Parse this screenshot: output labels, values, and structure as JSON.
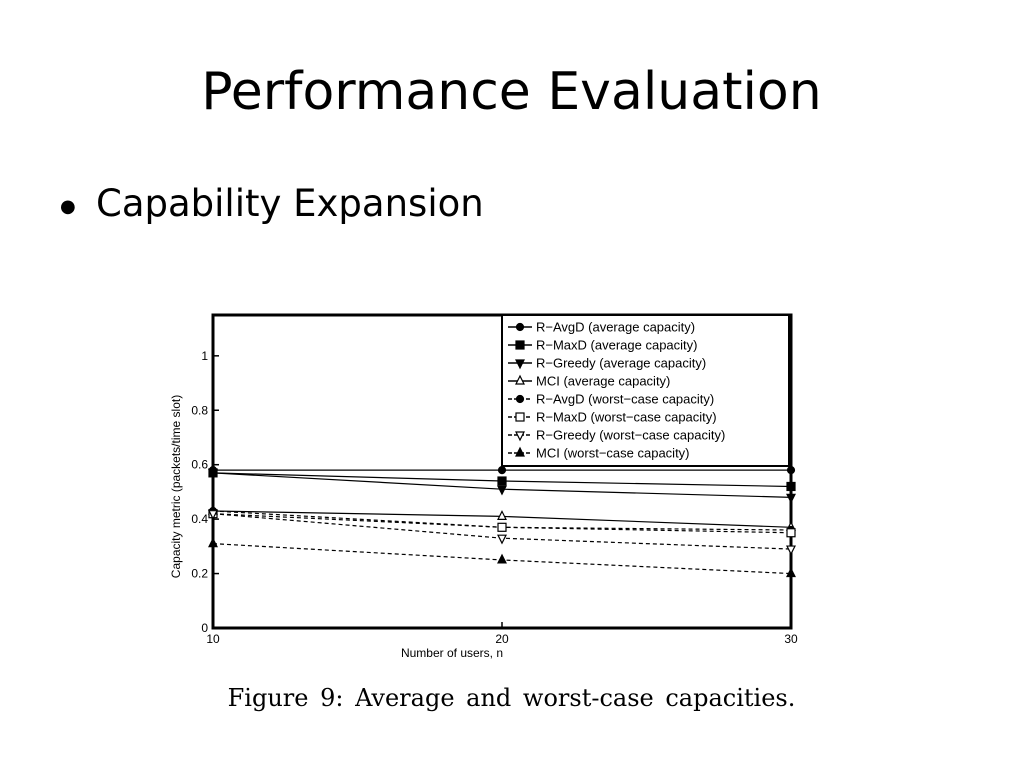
{
  "slide": {
    "title": "Performance Evaluation",
    "bullet": "Capability Expansion",
    "caption": "Figure 9:  Average and worst-case capacities."
  },
  "chart_data": {
    "type": "line",
    "title": "",
    "xlabel": "Number of users, n",
    "ylabel": "Capacity metric (packets/time slot)",
    "x": [
      10,
      20,
      30
    ],
    "xlim": [
      10,
      30
    ],
    "ylim": [
      0,
      1.15
    ],
    "xticks": [
      "10",
      "20",
      "30"
    ],
    "yticks": [
      "0",
      "0.2",
      "0.4",
      "0.6",
      "0.8",
      "1"
    ],
    "grid": false,
    "legend_position": "top-right",
    "series": [
      {
        "name": "R−AvgD (average capacity)",
        "values": [
          0.58,
          0.58,
          0.58
        ],
        "marker": "circle",
        "dash": "solid"
      },
      {
        "name": "R−MaxD (average capacity)",
        "values": [
          0.57,
          0.54,
          0.52
        ],
        "marker": "square",
        "dash": "solid"
      },
      {
        "name": "R−Greedy (average capacity)",
        "values": [
          0.57,
          0.51,
          0.48
        ],
        "marker": "triangle-down",
        "dash": "solid"
      },
      {
        "name": "MCI (average capacity)",
        "values": [
          0.43,
          0.41,
          0.37
        ],
        "marker": "triangle-up-open",
        "dash": "solid"
      },
      {
        "name": "R−AvgD (worst−case capacity)",
        "values": [
          0.43,
          0.37,
          0.36
        ],
        "marker": "circle",
        "dash": "dashed"
      },
      {
        "name": "R−MaxD (worst−case capacity)",
        "values": [
          0.42,
          0.37,
          0.35
        ],
        "marker": "square-open",
        "dash": "dashed"
      },
      {
        "name": "R−Greedy (worst−case capacity)",
        "values": [
          0.42,
          0.33,
          0.29
        ],
        "marker": "triangle-down-open",
        "dash": "dashed"
      },
      {
        "name": "MCI (worst−case capacity)",
        "values": [
          0.31,
          0.25,
          0.2
        ],
        "marker": "triangle-up",
        "dash": "dashed"
      }
    ]
  }
}
